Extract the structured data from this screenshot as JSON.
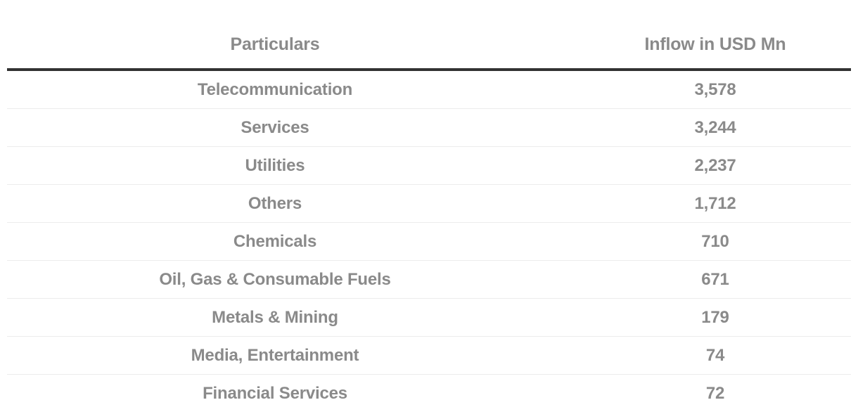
{
  "chart_data": {
    "type": "table",
    "columns": [
      "Particulars",
      "Inflow in USD Mn"
    ],
    "rows": [
      [
        "Telecommunication",
        "3,578"
      ],
      [
        "Services",
        "3,244"
      ],
      [
        "Utilities",
        "2,237"
      ],
      [
        "Others",
        "1,712"
      ],
      [
        "Chemicals",
        "710"
      ],
      [
        "Oil, Gas & Consumable Fuels",
        "671"
      ],
      [
        "Metals & Mining",
        "179"
      ],
      [
        "Media, Entertainment",
        "74"
      ],
      [
        "Financial Services",
        "72"
      ]
    ],
    "values_numeric": [
      3578,
      3244,
      2237,
      1712,
      710,
      671,
      179,
      74,
      72
    ],
    "layout": {
      "legend": "none",
      "grid": "horizontal-row-dividers"
    }
  },
  "colors": {
    "text": "#8a8a8a",
    "thick_divider": "#323232",
    "row_divider": "#ececec",
    "background": "#ffffff"
  }
}
